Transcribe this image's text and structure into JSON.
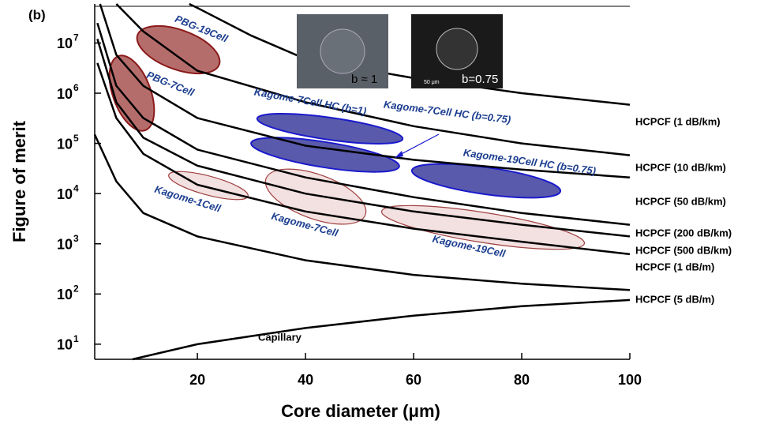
{
  "chart_data": {
    "type": "line",
    "panel_label": "(b)",
    "x_label": "Core diameter (μm)",
    "y_label": "Figure of merit",
    "xlim": [
      1,
      100
    ],
    "xticks": [
      20,
      40,
      60,
      80,
      100
    ],
    "ylim": [
      5,
      60000000
    ],
    "log_y": true,
    "yticks": [
      {
        "value": 10,
        "label": "10",
        "exponent": "1"
      },
      {
        "value": 100,
        "label": "10",
        "exponent": "2"
      },
      {
        "value": 1000,
        "label": "10",
        "exponent": "3"
      },
      {
        "value": 10000,
        "label": "10",
        "exponent": "4"
      },
      {
        "value": 100000,
        "label": "10",
        "exponent": "5"
      },
      {
        "value": 1000000,
        "label": "10",
        "exponent": "6"
      },
      {
        "value": 10000000,
        "label": "10",
        "exponent": "7"
      }
    ],
    "series": [
      {
        "name": "HCPCF (1 dB/km)",
        "color": "#000000",
        "x": [
          18.5,
          20,
          30,
          40,
          60,
          80,
          100
        ],
        "values": [
          60000000,
          50000000,
          14000000,
          4800000,
          2000000,
          1000000,
          590000
        ]
      },
      {
        "name": "HCPCF (10 dB/km)",
        "color": "#000000",
        "x": [
          5,
          10,
          20,
          40,
          60,
          80,
          100
        ],
        "values": [
          60000000,
          17000000,
          2800000,
          660000,
          220000,
          100000,
          58000
        ]
      },
      {
        "name": "HCPCF (50 dB/km)",
        "color": "#000000",
        "x": [
          2,
          5,
          10,
          20,
          40,
          60,
          80,
          100
        ],
        "values": [
          60000000,
          5800000,
          1400000,
          320000,
          90000,
          47000,
          30000,
          21000
        ]
      },
      {
        "name": "HCPCF (200 dB/km)",
        "color": "#000000",
        "x": [
          1.5,
          5,
          10,
          20,
          40,
          60,
          80,
          100
        ],
        "values": [
          25000000,
          1400000,
          320000,
          75000,
          21000,
          8500,
          4100,
          2400
        ]
      },
      {
        "name": "HCPCF (500 dB/km)",
        "color": "#000000",
        "x": [
          1.5,
          5,
          10,
          20,
          40,
          60,
          80,
          100
        ],
        "values": [
          12000000,
          660000,
          130000,
          36000,
          10000,
          4400,
          2400,
          1400
        ]
      },
      {
        "name": "HCPCF (1 dB/m)",
        "color": "#000000",
        "x": [
          1.5,
          5,
          10,
          20,
          40,
          60,
          80,
          100
        ],
        "values": [
          4000000,
          320000,
          62000,
          15000,
          4400,
          2000,
          1100,
          620
        ]
      },
      {
        "name": "HCPCF (5 dB/m)",
        "color": "#000000",
        "x": [
          1,
          5,
          10,
          20,
          40,
          60,
          80,
          100
        ],
        "values": [
          150000,
          17500,
          4100,
          1400,
          470,
          240,
          160,
          120
        ]
      },
      {
        "name": "Capillary",
        "color": "#000000",
        "x": [
          8,
          20,
          40,
          60,
          80,
          100
        ],
        "values": [
          5,
          10,
          21,
          37,
          57,
          76
        ]
      }
    ],
    "regions": [
      "PBG-19Cell",
      "PBG-7Cell",
      "Kagome-7Cell  HC (b=1)",
      "Kagome-7Cell HC (b=0.75)",
      "Kagome-19Cell HC (b=0.75)",
      "Kagome-1Cell",
      "Kagome-7Cell",
      "Kagome-19Cell"
    ],
    "insets": [
      "b ≈ 1",
      "b=0.75",
      "50 μm"
    ]
  }
}
